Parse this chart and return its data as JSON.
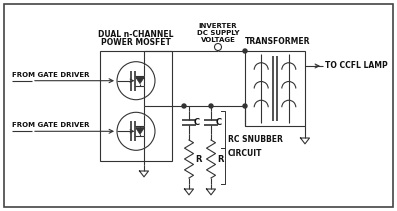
{
  "bg_color": "#ffffff",
  "border_color": "#444444",
  "line_color": "#333333",
  "text_color": "#111111",
  "labels": {
    "dual_mosfet_line1": "DUAL n-CHANNEL",
    "dual_mosfet_line2": "POWER MOSFET",
    "inverter_line1": "INVERTER",
    "inverter_line2": "DC SUPPLY",
    "inverter_line3": "VOLTAGE",
    "transformer": "TRANSFORMER",
    "to_ccfl": "TO CCFL LAMP",
    "gate1": "FROM GATE DRIVER",
    "gate2": "FROM GATE DRIVER",
    "rc_snubber_line1": "RC SNUBBER",
    "rc_snubber_line2": "CIRCUIT",
    "c_label": "C",
    "r_label": "R"
  },
  "figsize": [
    3.97,
    2.11
  ],
  "dpi": 100
}
